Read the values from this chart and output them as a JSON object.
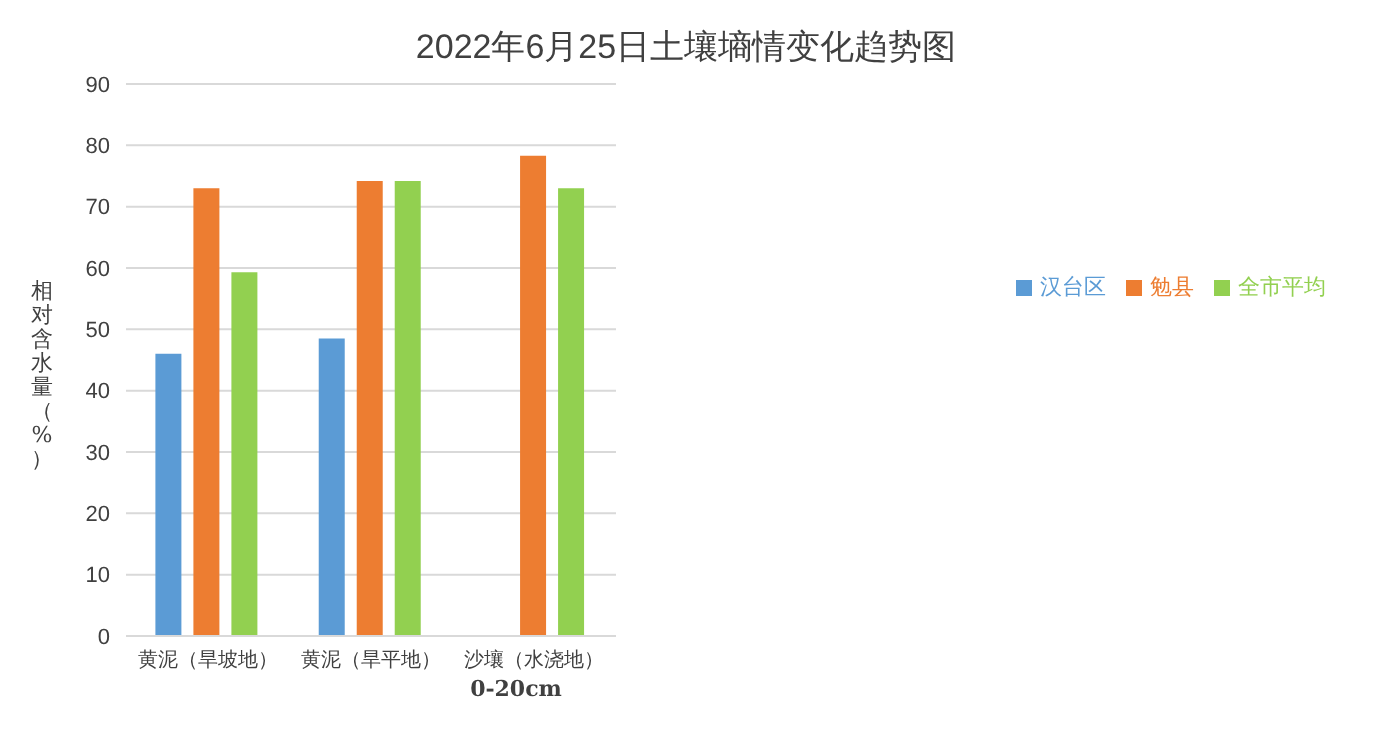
{
  "chart_data": {
    "type": "bar",
    "title": "2022年6月25日土壤墒情变化趋势图",
    "xlabel": "0-20cm",
    "ylabel": "相对含水量（%）",
    "categories": [
      "黄泥（旱坡地）",
      "黄泥（旱平地）",
      "沙壤（水浇地）"
    ],
    "series": [
      {
        "name": "汉台区",
        "color": "#5b9bd5",
        "values": [
          46,
          48.5,
          null
        ]
      },
      {
        "name": "勉县",
        "color": "#ed7d31",
        "values": [
          73,
          74.2,
          78.3
        ]
      },
      {
        "name": "全市平均",
        "color": "#92d050",
        "values": [
          59.3,
          74.2,
          73
        ]
      }
    ],
    "ylim": [
      0,
      90
    ],
    "yticks": [
      0,
      10,
      20,
      30,
      40,
      50,
      60,
      70,
      80,
      90
    ],
    "grid": "y",
    "legend": "right"
  }
}
